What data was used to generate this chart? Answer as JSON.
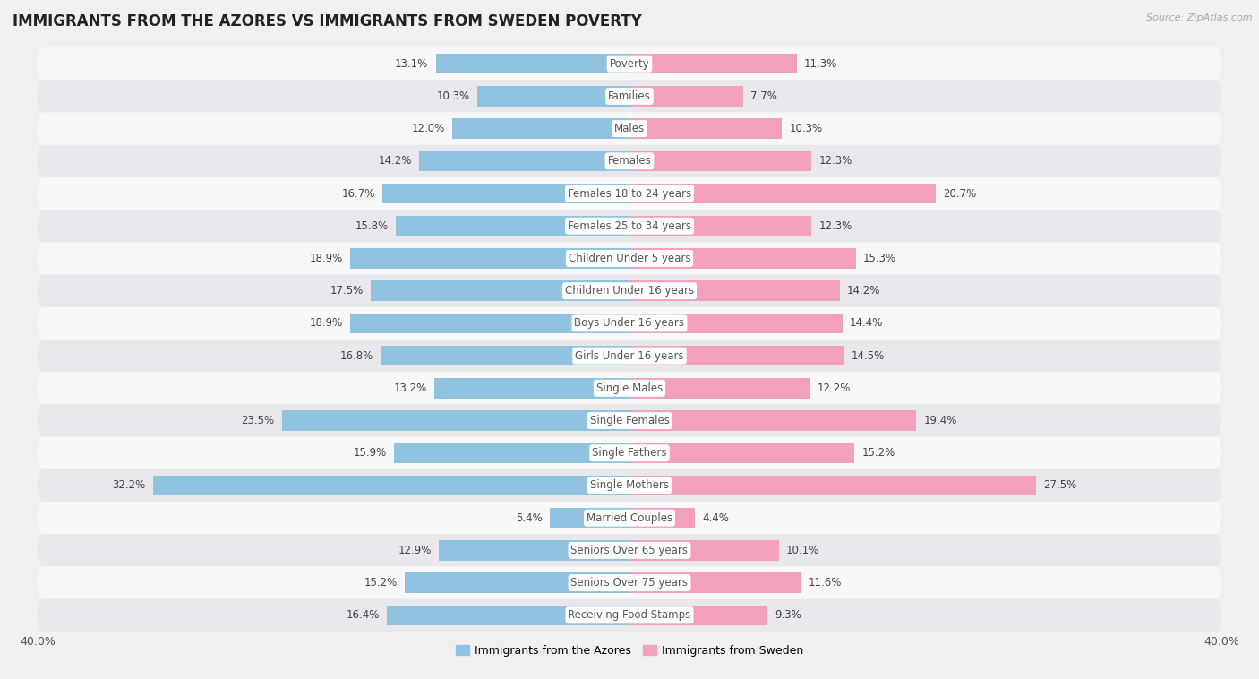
{
  "title": "IMMIGRANTS FROM THE AZORES VS IMMIGRANTS FROM SWEDEN POVERTY",
  "source": "Source: ZipAtlas.com",
  "categories": [
    "Poverty",
    "Families",
    "Males",
    "Females",
    "Females 18 to 24 years",
    "Females 25 to 34 years",
    "Children Under 5 years",
    "Children Under 16 years",
    "Boys Under 16 years",
    "Girls Under 16 years",
    "Single Males",
    "Single Females",
    "Single Fathers",
    "Single Mothers",
    "Married Couples",
    "Seniors Over 65 years",
    "Seniors Over 75 years",
    "Receiving Food Stamps"
  ],
  "azores_values": [
    13.1,
    10.3,
    12.0,
    14.2,
    16.7,
    15.8,
    18.9,
    17.5,
    18.9,
    16.8,
    13.2,
    23.5,
    15.9,
    32.2,
    5.4,
    12.9,
    15.2,
    16.4
  ],
  "sweden_values": [
    11.3,
    7.7,
    10.3,
    12.3,
    20.7,
    12.3,
    15.3,
    14.2,
    14.4,
    14.5,
    12.2,
    19.4,
    15.2,
    27.5,
    4.4,
    10.1,
    11.6,
    9.3
  ],
  "azores_color": "#8FC3E0",
  "sweden_color": "#F2A0BC",
  "bg_color": "#f0f0f0",
  "row_light": "#f8f8f8",
  "row_dark": "#e8e8ec",
  "xlim": 40.0,
  "legend_label_azores": "Immigrants from the Azores",
  "legend_label_sweden": "Immigrants from Sweden",
  "title_fontsize": 12,
  "label_fontsize": 8.5,
  "value_fontsize": 8.5,
  "bar_height": 0.62
}
